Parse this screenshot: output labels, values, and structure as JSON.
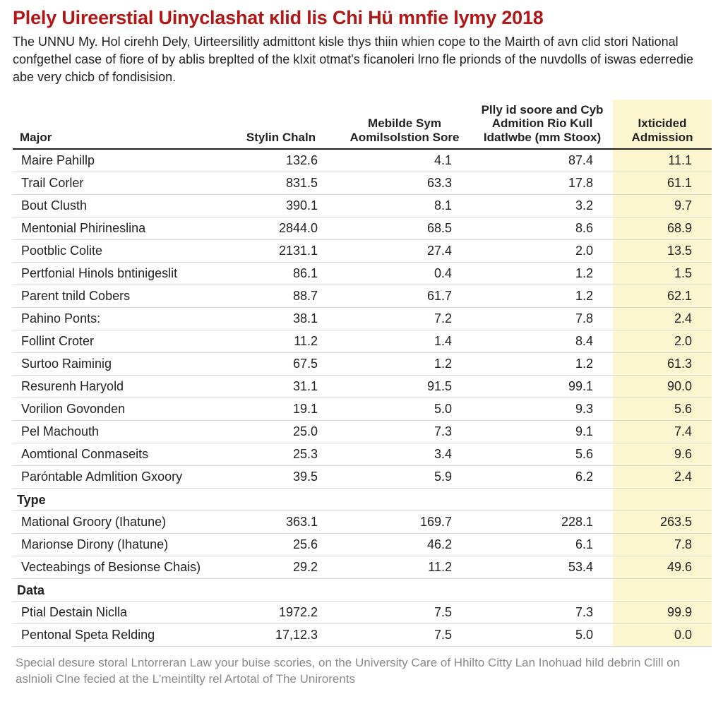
{
  "title": "Plely Uireerstial Uinyclashat ĸlid lis Chi Hü mnfie lymy 2018",
  "intro": "The UNNU My. Hol cirehh Dely, Uirteersilitly admittont kisle thys thiin whien cope to the Mairth of avn clid stori National confgethel case of fiore of by ablis breplted of the kIxit otmat's ficanoleri lrno fle prionds of the nuvdolls of iswas ederredie abe very chicb of fondisision.",
  "columns": {
    "major": "Major",
    "c1": "Stylin Chaln",
    "c2": "Mebilde Sym Aomilsolstion Sore",
    "c3": "Plly id soore and Cyb Admition Rio Kull Idatlwbe (mm Stoox)",
    "c4": "Ixticided Admission"
  },
  "col_widths": {
    "major": 300,
    "c1": 160,
    "c2": 190,
    "c3": 200,
    "c4": 140
  },
  "highlight_column": "c4",
  "colors": {
    "title": "#b01818",
    "text": "#222222",
    "row_border": "#d9d9d9",
    "header_border": "#222222",
    "highlight_bg": "#fbf6cf",
    "footnote": "#8a8a8a",
    "background": "#ffffff"
  },
  "fonts": {
    "title_size": 27,
    "body_size": 18,
    "header_size": 17,
    "footnote_size": 17,
    "family": "Arial"
  },
  "rows": [
    {
      "type": "data",
      "major": "Maire Pahillp",
      "c1": "132.6",
      "c2": "4.1",
      "c3": "87.4",
      "c4": "11.1"
    },
    {
      "type": "data",
      "major": "Trail Corler",
      "c1": "831.5",
      "c2": "63.3",
      "c3": "17.8",
      "c4": "61.1"
    },
    {
      "type": "data",
      "major": "Bout Clusth",
      "c1": "390.1",
      "c2": "8.1",
      "c3": "3.2",
      "c4": "9.7"
    },
    {
      "type": "data",
      "major": "Mentonial Phirineslina",
      "c1": "2844.0",
      "c2": "68.5",
      "c3": "8.6",
      "c4": "68.9"
    },
    {
      "type": "data",
      "major": "Pootblic Colite",
      "c1": "2131.1",
      "c2": "27.4",
      "c3": "2.0",
      "c4": "13.5"
    },
    {
      "type": "data",
      "major": "Pertfonial Hinols bntinigeslit",
      "c1": "86.1",
      "c2": "0.4",
      "c3": "1.2",
      "c4": "1.5"
    },
    {
      "type": "data",
      "major": "Parent tnild Cobers",
      "c1": "88.7",
      "c2": "61.7",
      "c3": "1.2",
      "c4": "62.1"
    },
    {
      "type": "data",
      "major": "Pahino Ponts:",
      "c1": "38.1",
      "c2": "7.2",
      "c3": "7.8",
      "c4": "2.4"
    },
    {
      "type": "data",
      "major": "Follint Croter",
      "c1": "11.2",
      "c2": "1.4",
      "c3": "8.4",
      "c4": "2.0"
    },
    {
      "type": "data",
      "major": "Surtoo Raiminig",
      "c1": "67.5",
      "c2": "1.2",
      "c3": "1.2",
      "c4": "61.3"
    },
    {
      "type": "data",
      "major": "Resurenh Haryold",
      "c1": "31.1",
      "c2": "91.5",
      "c3": "99.1",
      "c4": "90.0"
    },
    {
      "type": "data",
      "major": "Vorilion Govonden",
      "c1": "19.1",
      "c2": "5.0",
      "c3": "9.3",
      "c4": "5.6"
    },
    {
      "type": "data",
      "major": "Pel Machouth",
      "c1": "25.0",
      "c2": "7.3",
      "c3": "9.1",
      "c4": "7.4"
    },
    {
      "type": "data",
      "major": "Aomtional Conmaseits",
      "c1": "25.3",
      "c2": "3.4",
      "c3": "5.6",
      "c4": "9.6"
    },
    {
      "type": "data",
      "major": "Paróntable Admlition Gxoory",
      "c1": "39.5",
      "c2": "5.9",
      "c3": "6.2",
      "c4": "2.4"
    },
    {
      "type": "section",
      "major": "Type"
    },
    {
      "type": "data",
      "major": "Mational Groory (Ihatune)",
      "c1": "363.1",
      "c2": "169.7",
      "c3": "228.1",
      "c4": "263.5"
    },
    {
      "type": "data",
      "major": "Marionse Dirony (Ihatune)",
      "c1": "25.6",
      "c2": "46.2",
      "c3": "6.1",
      "c4": "7.8"
    },
    {
      "type": "data",
      "major": "Vecteabings of Besionse Chais)",
      "c1": "29.2",
      "c2": "11.2",
      "c3": "53.4",
      "c4": "49.6"
    },
    {
      "type": "section",
      "major": "Data"
    },
    {
      "type": "data",
      "major": "Ptial Destain Niclla",
      "c1": "1972.2",
      "c2": "7.5",
      "c3": "7.3",
      "c4": "99.9"
    },
    {
      "type": "data",
      "major": "Pentonal Speta Relding",
      "c1": "17,12.3",
      "c2": "7.5",
      "c3": "5.0",
      "c4": "0.0"
    }
  ],
  "footnote": "Special desure storal Lntorreran Law your buise scories, on the University Care of Hhilto Citty Lan Inohuad hild debrin Clill on aslnioli Clne fecied at the L'meintilty rel Artotal of The Unirorents"
}
